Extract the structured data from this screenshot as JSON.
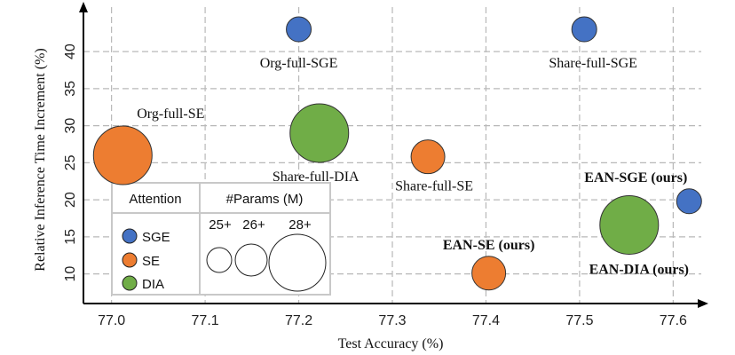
{
  "chart_data": {
    "type": "scatter",
    "title": "",
    "xlabel": "Test Accuracy (%)",
    "ylabel": "Relative Inference Time Increment (%)",
    "xlim": [
      76.97,
      77.63
    ],
    "ylim": [
      6,
      46
    ],
    "xticks": [
      "77.0",
      "77.1",
      "77.2",
      "77.3",
      "77.4",
      "77.5",
      "77.6"
    ],
    "yticks": [
      "10",
      "15",
      "20",
      "25",
      "30",
      "35",
      "40"
    ],
    "grid": true,
    "colors": {
      "SGE": "#4472c4",
      "SE": "#ed7d31",
      "DIA": "#70ad47"
    },
    "points": [
      {
        "label": "Org-full-SGE",
        "attention": "SGE",
        "params": "25+",
        "x": 77.2,
        "y": 43.0,
        "bold": false
      },
      {
        "label": "Share-full-SGE",
        "attention": "SGE",
        "params": "25+",
        "x": 77.505,
        "y": 43.0,
        "bold": false
      },
      {
        "label": "Org-full-SE",
        "attention": "SE",
        "params": "28+",
        "x": 77.012,
        "y": 26.0,
        "bold": false
      },
      {
        "label": "Share-full-DIA",
        "attention": "DIA",
        "params": "28+",
        "x": 77.222,
        "y": 29.0,
        "bold": false
      },
      {
        "label": "Share-full-SE",
        "attention": "SE",
        "params": "26+",
        "x": 77.338,
        "y": 25.8,
        "bold": false
      },
      {
        "label": "EAN-SGE (ours)",
        "attention": "SGE",
        "params": "25+",
        "x": 77.617,
        "y": 19.8,
        "bold": true
      },
      {
        "label": "EAN-DIA (ours)",
        "attention": "DIA",
        "params": "28+",
        "x": 77.553,
        "y": 16.6,
        "bold": true
      },
      {
        "label": "EAN-SE (ours)",
        "attention": "SE",
        "params": "26+",
        "x": 77.403,
        "y": 10.1,
        "bold": true
      }
    ],
    "legend": {
      "placement": "bottom-left",
      "attention_title": "Attention",
      "attention_items": [
        "SGE",
        "SE",
        "DIA"
      ],
      "params_title": "#Params (M)",
      "params_items": [
        "25+",
        "26+",
        "28+"
      ]
    }
  }
}
